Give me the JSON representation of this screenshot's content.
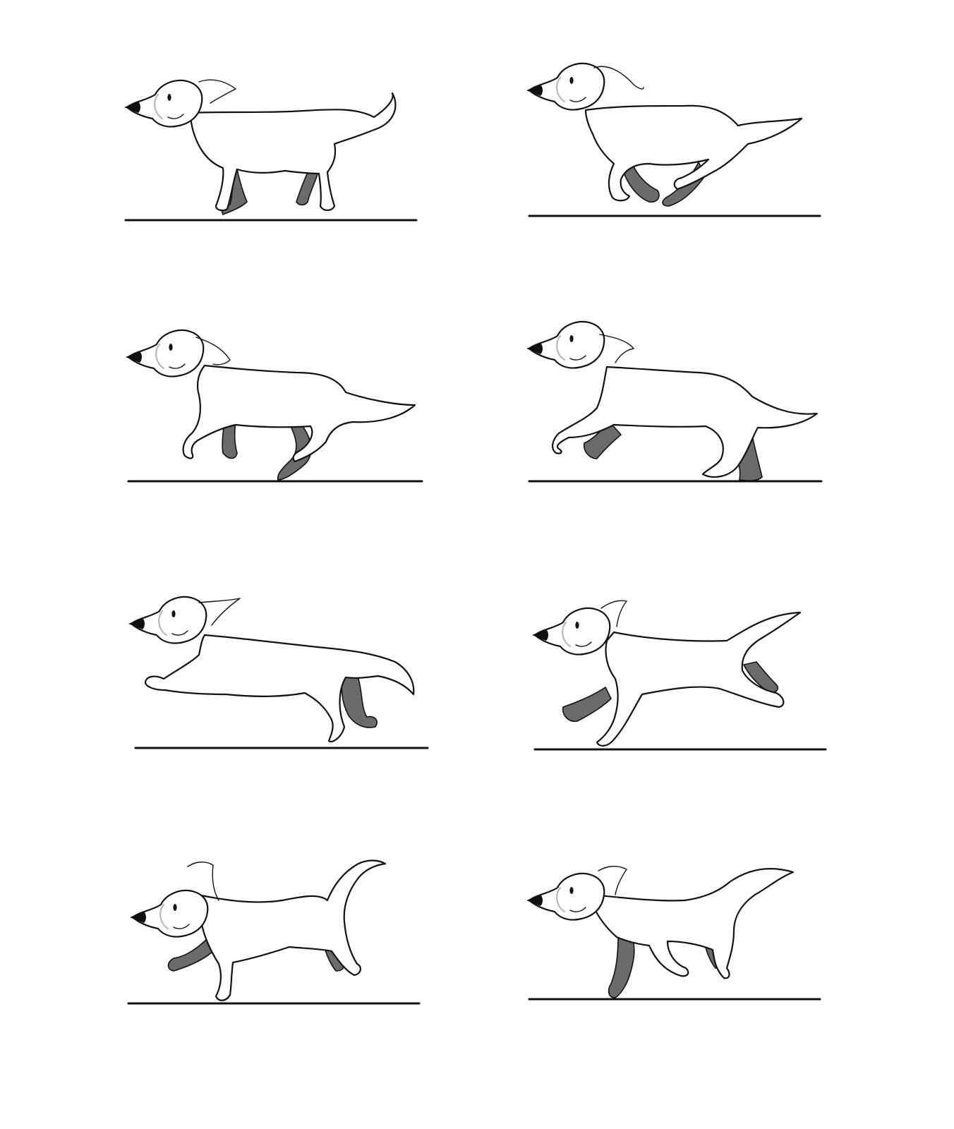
{
  "sheet": {
    "background_color": "#ffffff",
    "ink_color": "#111111",
    "shadow_color": "#6b6b6b",
    "frames": [
      {
        "pose": "contact",
        "tail": "up",
        "shaded_legs": [
          "front-far",
          "hind-far"
        ]
      },
      {
        "pose": "gather",
        "tail": "back",
        "shaded_legs": [
          "front-far",
          "hind-far"
        ]
      },
      {
        "pose": "push-off",
        "tail": "back",
        "shaded_legs": [
          "front-far",
          "hind-far"
        ]
      },
      {
        "pose": "reach",
        "tail": "back",
        "shaded_legs": [
          "front-far",
          "hind-far"
        ]
      },
      {
        "pose": "extension",
        "tail": "back",
        "shaded_legs": [
          "front-far",
          "hind-far"
        ]
      },
      {
        "pose": "suspension",
        "tail": "up",
        "shaded_legs": [
          "front-far",
          "hind-far"
        ]
      },
      {
        "pose": "landing",
        "tail": "up",
        "shaded_legs": [
          "front-far",
          "hind-far"
        ]
      },
      {
        "pose": "recovery",
        "tail": "up",
        "shaded_legs": [
          "front-far",
          "hind-far"
        ]
      }
    ]
  }
}
